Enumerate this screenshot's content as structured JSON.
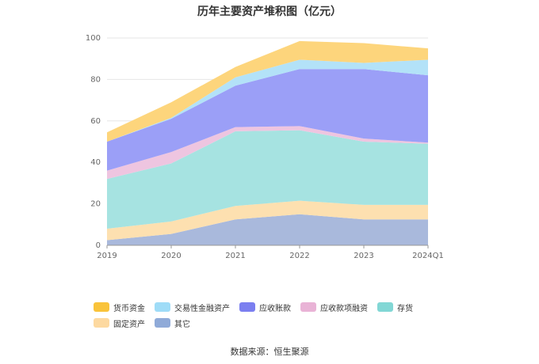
{
  "chart_data": {
    "type": "area",
    "stacked": true,
    "title": "历年主要资产堆积图（亿元）",
    "categories": [
      "2019",
      "2020",
      "2021",
      "2022",
      "2023",
      "2024Q1"
    ],
    "ylim": [
      0,
      100
    ],
    "yticks": [
      0,
      20,
      40,
      60,
      80,
      100
    ],
    "grid": true,
    "legend_position": "bottom",
    "series": [
      {
        "name": "其它",
        "color": "#a9b9dc",
        "values": [
          2.5,
          5.5,
          12.5,
          15,
          12.5,
          12.5
        ]
      },
      {
        "name": "固定资产",
        "color": "#fde0b0",
        "values": [
          5.5,
          6,
          6.5,
          6.5,
          7,
          7
        ]
      },
      {
        "name": "存货",
        "color": "#a6e3e1",
        "values": [
          24,
          28,
          36,
          34,
          30.5,
          29.5
        ]
      },
      {
        "name": "应收款项融资",
        "color": "#eec5e0",
        "values": [
          4,
          5.5,
          2,
          2,
          1.5,
          0.5
        ]
      },
      {
        "name": "应收账款",
        "color": "#9b9ff7",
        "values": [
          14,
          16,
          20,
          27.5,
          33.5,
          32.5
        ]
      },
      {
        "name": "交易性金融资产",
        "color": "#b3e2f8",
        "values": [
          0,
          0.5,
          4,
          4.5,
          3,
          7.5
        ]
      },
      {
        "name": "货币资金",
        "color": "#fdd57c",
        "values": [
          4.5,
          7.5,
          5,
          9,
          9.5,
          5.5
        ]
      }
    ]
  },
  "legend_order": [
    "货币资金",
    "交易性金融资产",
    "应收账款",
    "应收款项融资",
    "存货",
    "固定资产",
    "其它"
  ],
  "legend_colors": {
    "货币资金": "#f9c33a",
    "交易性金融资产": "#9fdcf7",
    "应收账款": "#7b7ff0",
    "应收款项融资": "#e9b3d6",
    "存货": "#82d7d5",
    "固定资产": "#fdd9a0",
    "其它": "#8faad8"
  },
  "source": "数据来源：恒生聚源"
}
